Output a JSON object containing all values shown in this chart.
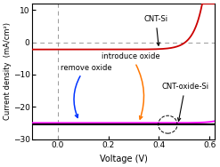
{
  "title": "",
  "xlabel": "Voltage (V)",
  "ylabel": "Current density  (mA/cm²)",
  "xlim": [
    -0.1,
    0.62
  ],
  "ylim": [
    -30,
    12
  ],
  "yticks": [
    10,
    0,
    -10,
    -20,
    -30
  ],
  "xticks": [
    0.0,
    0.2,
    0.4,
    0.6
  ],
  "background_color": "#ffffff",
  "curve_cnt_si_color": "#cc0000",
  "curve_cnt_oxide_si_color": "#000000",
  "curve_magenta_color": "#ff00ff",
  "dashed_line_color": "#999999",
  "introduce_arrow_color": "#ff7700",
  "remove_arrow_color": "#0033ff",
  "cnt_si_Jsc": 2.2,
  "cnt_si_J0": 2e-06,
  "cnt_si_n": 1.4,
  "cnt_oxide_si_Jsc": 25.5,
  "cnt_oxide_si_J0": 5e-11,
  "cnt_oxide_si_n": 1.6,
  "magenta_Jsc": 25.0,
  "magenta_J0": 2e-08,
  "magenta_n": 1.4,
  "Vt": 0.02585
}
